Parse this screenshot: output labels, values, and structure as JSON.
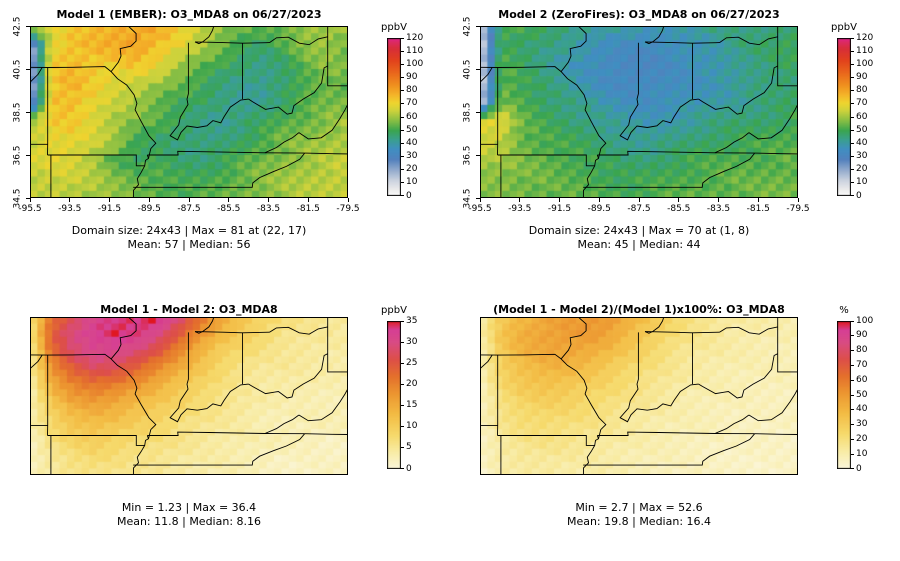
{
  "figure_background": "#ffffff",
  "chart_data": [
    {
      "type": "heatmap",
      "title": "Model 1 (EMBER): O3_MDA8 on 06/27/2023",
      "xlabel": "",
      "ylabel": "",
      "x_ticks": [
        "-95.5",
        "-93.5",
        "-91.5",
        "-89.5",
        "-87.5",
        "-85.5",
        "-83.5",
        "-81.5",
        "-79.5"
      ],
      "y_ticks": [
        "42.5",
        "40.5",
        "38.5",
        "36.5",
        "34.5"
      ],
      "lon_range": [
        -95.5,
        -79.5
      ],
      "lat_range": [
        34.5,
        42.5
      ],
      "grid": {
        "rows": 24,
        "cols": 43
      },
      "stats": [
        "Domain size: 24x43 | Max = 81 at (22, 17)",
        "Mean: 57 |  Median: 56"
      ],
      "colorbar": {
        "label": "ppbV",
        "min": 0,
        "max": 120,
        "ticks": [
          0,
          10,
          20,
          30,
          40,
          50,
          60,
          70,
          80,
          90,
          100,
          110,
          120
        ]
      },
      "colormap": [
        [
          0,
          "#ffffff"
        ],
        [
          5,
          "#ececec"
        ],
        [
          12,
          "#ccd3df"
        ],
        [
          20,
          "#93aacd"
        ],
        [
          28,
          "#5381bd"
        ],
        [
          36,
          "#3f8fc1"
        ],
        [
          43,
          "#3aa08f"
        ],
        [
          50,
          "#3aa54f"
        ],
        [
          58,
          "#8cc043"
        ],
        [
          65,
          "#ccd23c"
        ],
        [
          71,
          "#efd52f"
        ],
        [
          77,
          "#f4b42a"
        ],
        [
          84,
          "#f0921f"
        ],
        [
          93,
          "#ea6a1c"
        ],
        [
          103,
          "#e2431c"
        ],
        [
          112,
          "#d82e38"
        ],
        [
          117,
          "#dc2a60"
        ],
        [
          120,
          "#e0218a"
        ]
      ],
      "field": [
        [
          68,
          66,
          72,
          76,
          78,
          80,
          78,
          72,
          66,
          60,
          55,
          52,
          55,
          60,
          62,
          58
        ],
        [
          14,
          70,
          75,
          76,
          79,
          81,
          76,
          70,
          62,
          56,
          50,
          48,
          52,
          58,
          60,
          56
        ],
        [
          12,
          72,
          76,
          74,
          72,
          74,
          70,
          62,
          55,
          50,
          46,
          44,
          48,
          54,
          58,
          55
        ],
        [
          14,
          74,
          77,
          72,
          68,
          66,
          60,
          54,
          50,
          46,
          44,
          42,
          46,
          52,
          56,
          54
        ],
        [
          16,
          75,
          76,
          70,
          64,
          60,
          55,
          50,
          48,
          44,
          42,
          44,
          48,
          52,
          55,
          56
        ],
        [
          62,
          72,
          73,
          68,
          62,
          57,
          52,
          48,
          45,
          43,
          45,
          48,
          52,
          55,
          58,
          60
        ],
        [
          64,
          70,
          70,
          66,
          60,
          50,
          48,
          46,
          44,
          45,
          48,
          52,
          56,
          58,
          60,
          62
        ],
        [
          66,
          68,
          67,
          62,
          52,
          47,
          50,
          47,
          46,
          48,
          52,
          55,
          58,
          60,
          62,
          64
        ],
        [
          64,
          66,
          65,
          62,
          58,
          55,
          52,
          50,
          50,
          52,
          55,
          58,
          60,
          62,
          64,
          65
        ],
        [
          62,
          64,
          63,
          60,
          58,
          56,
          54,
          52,
          52,
          54,
          56,
          58,
          60,
          62,
          63,
          64
        ]
      ]
    },
    {
      "type": "heatmap",
      "title": "Model 2 (ZeroFires): O3_MDA8 on 06/27/2023",
      "xlabel": "",
      "ylabel": "",
      "x_ticks": [
        "-95.5",
        "-93.5",
        "-91.5",
        "-89.5",
        "-87.5",
        "-85.5",
        "-83.5",
        "-81.5",
        "-79.5"
      ],
      "y_ticks": [
        "42.5",
        "40.5",
        "38.5",
        "36.5",
        "34.5"
      ],
      "lon_range": [
        -95.5,
        -79.5
      ],
      "lat_range": [
        34.5,
        42.5
      ],
      "grid": {
        "rows": 24,
        "cols": 43
      },
      "stats": [
        "Domain size: 24x43 | Max = 70 at (1, 8)",
        "Mean: 45 |  Median: 44"
      ],
      "colorbar": {
        "label": "ppbV",
        "min": 0,
        "max": 120,
        "ticks": [
          0,
          10,
          20,
          30,
          40,
          50,
          60,
          70,
          80,
          90,
          100,
          110,
          120
        ]
      },
      "colormap": [
        [
          0,
          "#ffffff"
        ],
        [
          5,
          "#ececec"
        ],
        [
          12,
          "#ccd3df"
        ],
        [
          20,
          "#93aacd"
        ],
        [
          28,
          "#5381bd"
        ],
        [
          36,
          "#3f8fc1"
        ],
        [
          43,
          "#3aa08f"
        ],
        [
          50,
          "#3aa54f"
        ],
        [
          58,
          "#8cc043"
        ],
        [
          65,
          "#ccd23c"
        ],
        [
          71,
          "#efd52f"
        ],
        [
          77,
          "#f4b42a"
        ],
        [
          84,
          "#f0921f"
        ],
        [
          93,
          "#ea6a1c"
        ],
        [
          103,
          "#e2431c"
        ],
        [
          112,
          "#d82e38"
        ],
        [
          117,
          "#dc2a60"
        ],
        [
          120,
          "#e0218a"
        ]
      ],
      "field": [
        [
          10,
          52,
          50,
          48,
          46,
          44,
          42,
          40,
          38,
          40,
          42,
          44,
          44,
          44,
          46,
          48
        ],
        [
          9,
          50,
          48,
          45,
          42,
          38,
          36,
          34,
          33,
          35,
          38,
          40,
          44,
          46,
          48,
          50
        ],
        [
          8,
          52,
          48,
          44,
          40,
          36,
          33,
          32,
          32,
          34,
          36,
          38,
          42,
          45,
          47,
          48
        ],
        [
          9,
          55,
          50,
          46,
          42,
          38,
          34,
          32,
          33,
          35,
          36,
          38,
          40,
          44,
          46,
          47
        ],
        [
          11,
          56,
          52,
          48,
          45,
          42,
          38,
          36,
          35,
          36,
          38,
          40,
          42,
          44,
          46,
          48
        ],
        [
          68,
          70,
          54,
          50,
          47,
          45,
          42,
          40,
          38,
          40,
          42,
          44,
          46,
          47,
          48,
          50
        ],
        [
          66,
          64,
          55,
          52,
          50,
          48,
          45,
          43,
          42,
          44,
          46,
          48,
          49,
          50,
          51,
          52
        ],
        [
          62,
          60,
          56,
          54,
          52,
          50,
          48,
          46,
          46,
          48,
          50,
          51,
          52,
          52,
          53,
          54
        ],
        [
          58,
          58,
          56,
          55,
          53,
          52,
          50,
          49,
          50,
          51,
          52,
          53,
          54,
          54,
          55,
          55
        ],
        [
          56,
          57,
          56,
          55,
          54,
          53,
          52,
          51,
          52,
          53,
          54,
          54,
          55,
          55,
          56,
          56
        ]
      ]
    },
    {
      "type": "heatmap",
      "title": "Model 1 - Model 2: O3_MDA8",
      "xlabel": "",
      "ylabel": "",
      "lon_range": [
        -95.5,
        -79.5
      ],
      "lat_range": [
        34.5,
        42.5
      ],
      "grid": {
        "rows": 24,
        "cols": 43
      },
      "stats": [
        "Min = 1.23 | Max = 36.4",
        "Mean: 11.8 |  Median: 8.16"
      ],
      "colorbar": {
        "label": "ppbV",
        "min": 0,
        "max": 35,
        "ticks": [
          0,
          5,
          10,
          15,
          20,
          25,
          30,
          35
        ]
      },
      "colormap": [
        [
          0,
          "#fbf7dd"
        ],
        [
          4,
          "#f8eca6"
        ],
        [
          8,
          "#f6da6c"
        ],
        [
          13,
          "#f3bc44"
        ],
        [
          18,
          "#ec9530"
        ],
        [
          22,
          "#e4702c"
        ],
        [
          26,
          "#dd4f48"
        ],
        [
          30,
          "#d84b84"
        ],
        [
          33,
          "#d63f95"
        ],
        [
          34.5,
          "#dd2743"
        ],
        [
          35,
          "#e01620"
        ]
      ],
      "field": [
        [
          6,
          22,
          27,
          31,
          33,
          34,
          36,
          29,
          22,
          16,
          12,
          9,
          7,
          6,
          5,
          5
        ],
        [
          5,
          24,
          30,
          33,
          34,
          33,
          30,
          25,
          18,
          13,
          10,
          8,
          6,
          5,
          5,
          4
        ],
        [
          4,
          22,
          28,
          31,
          31,
          29,
          25,
          19,
          14,
          10,
          8,
          6,
          5,
          5,
          4,
          4
        ],
        [
          4,
          18,
          24,
          27,
          26,
          23,
          19,
          15,
          11,
          8,
          6,
          5,
          5,
          4,
          4,
          4
        ],
        [
          3,
          14,
          19,
          21,
          20,
          17,
          14,
          11,
          9,
          7,
          5,
          4,
          4,
          4,
          3,
          3
        ],
        [
          3,
          11,
          15,
          16,
          15,
          13,
          11,
          9,
          7,
          6,
          5,
          4,
          3,
          3,
          3,
          3
        ],
        [
          3,
          8,
          12,
          13,
          12,
          10,
          9,
          7,
          6,
          5,
          4,
          3,
          3,
          3,
          3,
          3
        ],
        [
          2,
          7,
          9,
          10,
          9,
          8,
          7,
          6,
          5,
          4,
          4,
          3,
          3,
          3,
          2,
          2
        ],
        [
          2,
          5,
          7,
          8,
          7,
          6,
          6,
          5,
          4,
          4,
          3,
          3,
          2,
          2,
          2,
          2
        ],
        [
          2,
          4,
          6,
          6,
          6,
          5,
          5,
          4,
          4,
          3,
          3,
          2,
          2,
          2,
          2,
          2
        ]
      ]
    },
    {
      "type": "heatmap",
      "title": "(Model 1 - Model 2)/(Model 1)x100%: O3_MDA8",
      "xlabel": "",
      "ylabel": "",
      "lon_range": [
        -95.5,
        -79.5
      ],
      "lat_range": [
        34.5,
        42.5
      ],
      "grid": {
        "rows": 24,
        "cols": 43
      },
      "stats": [
        "Min = 2.7 | Max = 52.6",
        "Mean: 19.8 |  Median: 16.4"
      ],
      "colorbar": {
        "label": "%",
        "min": 0,
        "max": 100,
        "ticks": [
          0,
          10,
          20,
          30,
          40,
          50,
          60,
          70,
          80,
          90,
          100
        ]
      },
      "colormap": [
        [
          0,
          "#fbf7dd"
        ],
        [
          12,
          "#f8eca6"
        ],
        [
          24,
          "#f6da6c"
        ],
        [
          38,
          "#f3bc44"
        ],
        [
          52,
          "#ec9530"
        ],
        [
          63,
          "#e4702c"
        ],
        [
          74,
          "#dd4f48"
        ],
        [
          86,
          "#d84b84"
        ],
        [
          94,
          "#d63f95"
        ],
        [
          98,
          "#dd2743"
        ],
        [
          100,
          "#e01620"
        ]
      ],
      "field": [
        [
          10,
          32,
          40,
          45,
          48,
          50,
          52,
          44,
          34,
          26,
          20,
          16,
          13,
          12,
          11,
          10
        ],
        [
          9,
          34,
          43,
          47,
          49,
          50,
          46,
          38,
          30,
          23,
          18,
          15,
          12,
          11,
          10,
          9
        ],
        [
          8,
          32,
          41,
          45,
          46,
          44,
          39,
          31,
          25,
          19,
          15,
          13,
          11,
          10,
          9,
          9
        ],
        [
          7,
          28,
          36,
          40,
          40,
          36,
          31,
          25,
          20,
          16,
          13,
          11,
          10,
          9,
          9,
          8
        ],
        [
          7,
          24,
          31,
          34,
          33,
          29,
          25,
          21,
          17,
          14,
          11,
          10,
          9,
          8,
          8,
          7
        ],
        [
          6,
          20,
          26,
          28,
          27,
          24,
          21,
          17,
          14,
          12,
          10,
          9,
          8,
          7,
          7,
          7
        ],
        [
          6,
          17,
          22,
          23,
          22,
          20,
          17,
          14,
          12,
          10,
          9,
          8,
          7,
          7,
          6,
          6
        ],
        [
          5,
          14,
          18,
          19,
          18,
          16,
          14,
          12,
          10,
          9,
          8,
          7,
          6,
          6,
          6,
          5
        ],
        [
          5,
          12,
          15,
          15,
          14,
          13,
          12,
          10,
          9,
          8,
          7,
          6,
          6,
          5,
          5,
          5
        ],
        [
          4,
          10,
          12,
          13,
          12,
          11,
          10,
          9,
          8,
          7,
          6,
          6,
          5,
          5,
          5,
          4
        ]
      ]
    }
  ]
}
